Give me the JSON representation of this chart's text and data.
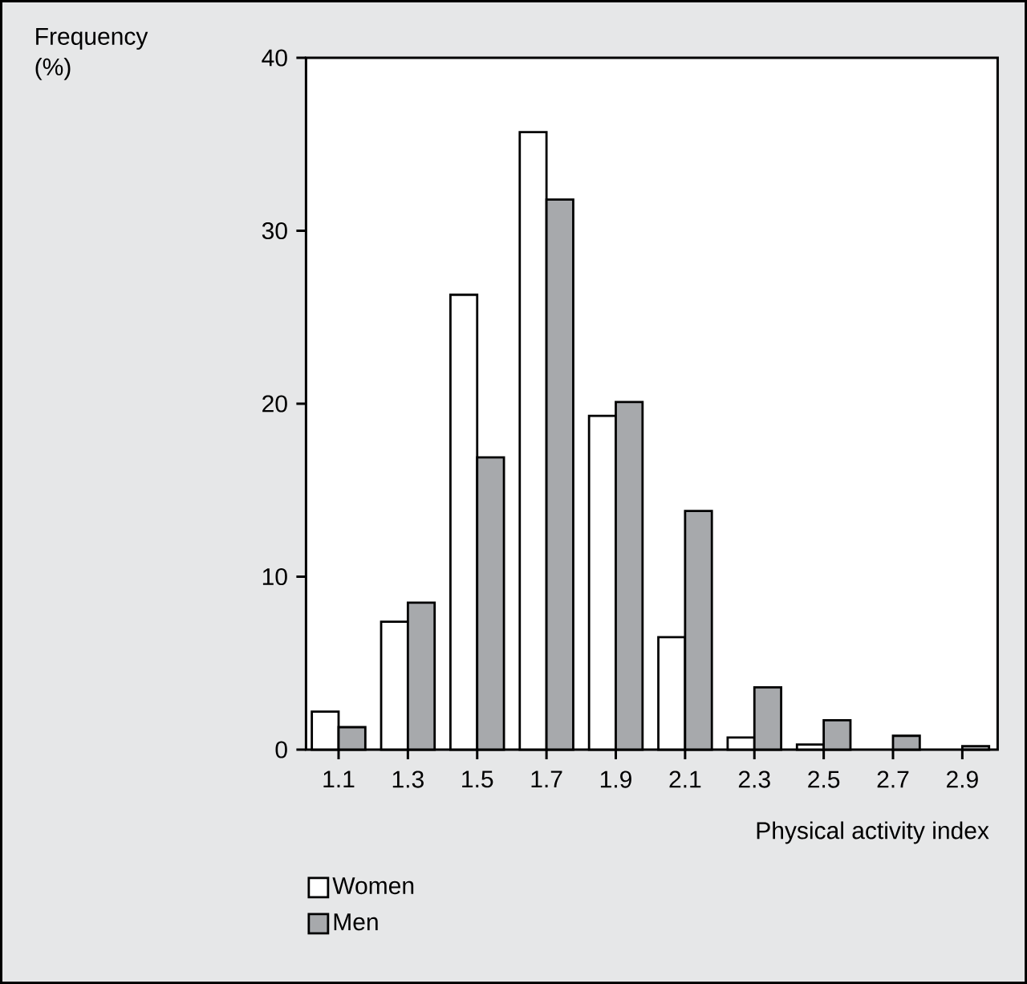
{
  "chart_data": {
    "type": "bar",
    "ylabel": "Frequency (%)",
    "xlabel": "Physical activity index",
    "categories": [
      "1.1",
      "1.3",
      "1.5",
      "1.7",
      "1.9",
      "2.1",
      "2.3",
      "2.5",
      "2.7",
      "2.9"
    ],
    "series": [
      {
        "name": "Women",
        "color": "#ffffff",
        "values": [
          2.2,
          7.4,
          26.3,
          35.7,
          19.3,
          6.5,
          0.7,
          0.3,
          null,
          null
        ]
      },
      {
        "name": "Men",
        "color": "#a7a9ac",
        "values": [
          1.3,
          8.5,
          16.9,
          31.8,
          20.1,
          13.8,
          3.6,
          1.7,
          0.8,
          0.2
        ]
      }
    ],
    "ylim": [
      0,
      40
    ],
    "yticks": [
      0,
      10,
      20,
      30,
      40
    ],
    "legend": "bottom left"
  }
}
